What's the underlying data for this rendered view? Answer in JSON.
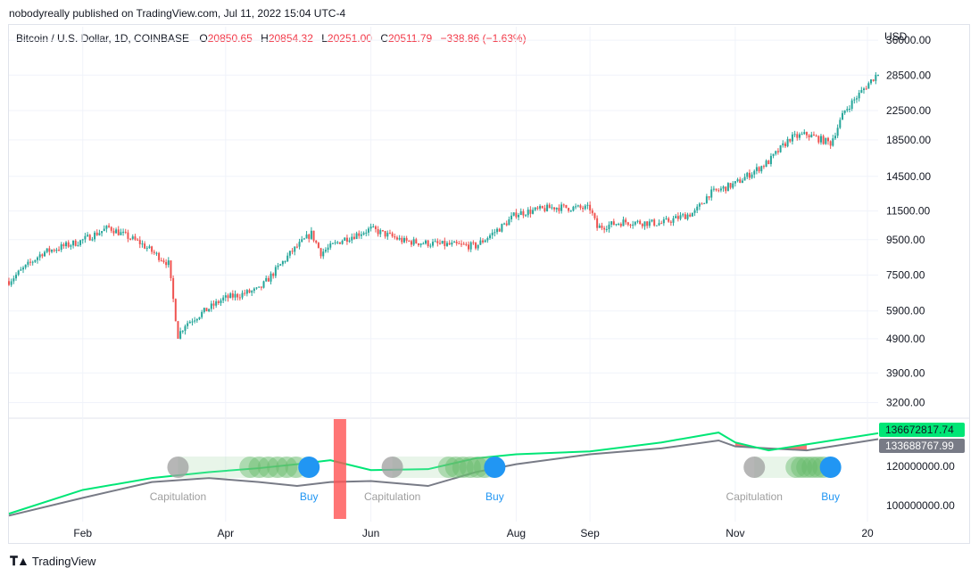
{
  "header": {
    "attribution": "nobodyreally published on TradingView.com, Jul 11, 2022 15:04 UTC-4"
  },
  "legend": {
    "symbol": "Bitcoin / U.S. Dollar, 1D, COINBASE",
    "open_label": "O",
    "open": "20850.65",
    "high_label": "H",
    "high": "20854.32",
    "low_label": "L",
    "low": "20251.00",
    "close_label": "C",
    "close": "20511.79",
    "change": "−338.86 (−1.63%)"
  },
  "axis": {
    "currency": "USD"
  },
  "footer": {
    "brand": "TradingView",
    "logo_icon": "tradingview-logo-icon"
  },
  "colors": {
    "up": "#26a69a",
    "down": "#ef5350",
    "fast_line": "#00e676",
    "slow_line": "#787b86",
    "buy": "#2196f3",
    "capitulation": "#9e9e9e",
    "band": "#ff5252",
    "grid": "#f0f3fa"
  },
  "chart_data": [
    {
      "type": "candlestick",
      "scale": "log",
      "price_ticks": [
        "36000.00",
        "28500.00",
        "22500.00",
        "18500.00",
        "14500.00",
        "11500.00",
        "9500.00",
        "7500.00",
        "5900.00",
        "4900.00",
        "3900.00",
        "3200.00"
      ],
      "x_ticks": [
        "Feb",
        "Apr",
        "Jun",
        "Aug",
        "Sep",
        "Nov",
        "20"
      ],
      "ylim": [
        2900,
        38000
      ],
      "close_series": {
        "dates": [
          "2020-01-01",
          "2020-01-15",
          "2020-01-31",
          "2020-02-12",
          "2020-02-25",
          "2020-03-08",
          "2020-03-12",
          "2020-03-15",
          "2020-03-31",
          "2020-04-15",
          "2020-04-29",
          "2020-05-07",
          "2020-05-11",
          "2020-05-20",
          "2020-06-01",
          "2020-06-15",
          "2020-07-01",
          "2020-07-15",
          "2020-07-27",
          "2020-08-01",
          "2020-08-17",
          "2020-09-01",
          "2020-09-04",
          "2020-09-15",
          "2020-10-01",
          "2020-10-15",
          "2020-10-21",
          "2020-11-01",
          "2020-11-15",
          "2020-11-24",
          "2020-12-01",
          "2020-12-11",
          "2020-12-17",
          "2020-12-31"
        ],
        "close": [
          7200,
          8700,
          9400,
          10300,
          9300,
          8100,
          5000,
          5400,
          6400,
          6800,
          8800,
          9900,
          8700,
          9500,
          10200,
          9400,
          9200,
          9100,
          10500,
          11300,
          11800,
          11700,
          10300,
          10700,
          10600,
          11400,
          12900,
          13800,
          16000,
          18700,
          19200,
          18100,
          22500,
          29000
        ]
      }
    },
    {
      "type": "line",
      "price_ticks": [
        "120000000.00",
        "100000000.00"
      ],
      "last_values": [
        "136672817.74",
        "133688767.99"
      ],
      "series": [
        {
          "dates": [
            "2020-01-01",
            "2020-02-01",
            "2020-03-01",
            "2020-03-25",
            "2020-04-15",
            "2020-05-01",
            "2020-05-15",
            "2020-06-01",
            "2020-06-25",
            "2020-07-15",
            "2020-08-01",
            "2020-09-01",
            "2020-10-01",
            "2020-10-25",
            "2020-11-01",
            "2020-11-15",
            "2020-12-01",
            "2020-12-31"
          ],
          "values": [
            96000000,
            108000000,
            114000000,
            117000000,
            119000000,
            121000000,
            123000000,
            118000000,
            118500000,
            124000000,
            126000000,
            127500000,
            132000000,
            137000000,
            132000000,
            128000000,
            131000000,
            136672817.74
          ]
        },
        {
          "dates": [
            "2020-01-01",
            "2020-02-01",
            "2020-03-01",
            "2020-03-25",
            "2020-04-15",
            "2020-05-01",
            "2020-05-15",
            "2020-06-01",
            "2020-06-25",
            "2020-07-15",
            "2020-08-01",
            "2020-09-01",
            "2020-10-01",
            "2020-10-25",
            "2020-11-01",
            "2020-11-15",
            "2020-12-01",
            "2020-12-31"
          ],
          "values": [
            95000000,
            104000000,
            112000000,
            114000000,
            112000000,
            110000000,
            112000000,
            112500000,
            110000000,
            117000000,
            121000000,
            126000000,
            129000000,
            133000000,
            130000000,
            129000000,
            128000000,
            133688767.99
          ]
        }
      ],
      "signals": [
        {
          "label": "Capitulation",
          "date": "2020-03-12"
        },
        {
          "label": "Buy",
          "date": "2020-05-06"
        },
        {
          "label": "Capitulation",
          "date": "2020-06-10"
        },
        {
          "label": "Buy",
          "date": "2020-07-23"
        },
        {
          "label": "Capitulation",
          "date": "2020-11-09"
        },
        {
          "label": "Buy",
          "date": "2020-12-11"
        }
      ],
      "marker_dates": [
        "2020-05-19"
      ]
    }
  ]
}
